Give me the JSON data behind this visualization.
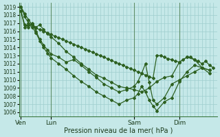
{
  "xlabel": "Pression niveau de la mer( hPa )",
  "background_color": "#c5e8e8",
  "grid_color": "#9ecece",
  "line_color": "#2d6020",
  "ylim": [
    1005.5,
    1019.5
  ],
  "yticks": [
    1006,
    1007,
    1008,
    1009,
    1010,
    1011,
    1012,
    1013,
    1014,
    1015,
    1016,
    1017,
    1018,
    1019
  ],
  "xtick_labels": [
    "Ven",
    "Lun",
    "Sam",
    "Dim"
  ],
  "xtick_positions": [
    0,
    8,
    30,
    42
  ],
  "xlim": [
    -0.5,
    52
  ],
  "vline_positions": [
    0,
    8,
    30,
    42
  ],
  "series1_x": [
    0,
    1,
    2,
    3,
    4,
    5,
    6,
    7,
    8,
    9,
    10,
    11,
    12,
    13,
    14,
    15,
    16,
    17,
    18,
    19,
    20,
    21,
    22,
    23,
    24,
    25,
    26,
    27,
    28,
    29,
    30,
    31,
    32,
    33,
    34,
    35,
    36,
    37,
    38,
    39,
    40,
    41,
    42,
    43,
    44,
    45,
    46,
    47,
    48,
    49,
    50,
    51
  ],
  "series1_y": [
    1019.0,
    1018.2,
    1017.4,
    1016.8,
    1016.4,
    1016.2,
    1016.0,
    1015.8,
    1015.6,
    1015.4,
    1015.2,
    1015.0,
    1014.8,
    1014.6,
    1014.4,
    1014.2,
    1014.0,
    1013.8,
    1013.6,
    1013.4,
    1013.2,
    1013.0,
    1012.8,
    1012.6,
    1012.4,
    1012.2,
    1012.0,
    1011.8,
    1011.6,
    1011.4,
    1011.2,
    1011.0,
    1010.8,
    1010.6,
    1010.4,
    1010.2,
    1013.0,
    1013.0,
    1012.8,
    1012.6,
    1012.5,
    1012.3,
    1012.2,
    1012.5,
    1012.8,
    1012.8,
    1012.5,
    1012.3,
    1012.0,
    1012.3,
    1011.8,
    1011.5
  ],
  "series2_x": [
    0,
    1,
    2,
    3,
    4,
    5,
    6,
    7,
    8,
    10,
    12,
    14,
    16,
    18,
    20,
    22,
    24,
    26,
    28,
    30,
    32,
    34,
    36,
    38,
    40,
    42,
    44,
    46,
    48,
    50
  ],
  "series2_y": [
    1019.0,
    1017.8,
    1017.0,
    1016.8,
    1016.5,
    1016.8,
    1016.2,
    1015.7,
    1015.3,
    1014.5,
    1013.5,
    1012.8,
    1012.0,
    1011.3,
    1010.6,
    1010.2,
    1009.7,
    1009.2,
    1009.0,
    1008.8,
    1008.5,
    1009.0,
    1009.8,
    1010.3,
    1010.5,
    1012.2,
    1012.8,
    1012.5,
    1011.5,
    1011.2
  ],
  "series3_x": [
    0,
    1,
    2,
    3,
    4,
    5,
    6,
    7,
    8,
    10,
    12,
    14,
    16,
    18,
    20,
    22,
    24,
    26,
    28,
    30,
    31,
    32,
    33,
    34,
    35,
    36,
    38,
    40,
    42,
    44,
    46,
    48,
    50
  ],
  "series3_y": [
    1018.5,
    1016.8,
    1016.5,
    1017.0,
    1016.0,
    1015.0,
    1014.3,
    1013.7,
    1013.2,
    1012.8,
    1012.2,
    1012.5,
    1011.8,
    1011.0,
    1010.3,
    1009.5,
    1009.0,
    1008.5,
    1008.8,
    1009.2,
    1009.8,
    1010.8,
    1012.0,
    1009.7,
    1007.5,
    1007.0,
    1007.8,
    1009.5,
    1010.0,
    1010.5,
    1011.0,
    1011.5,
    1010.8
  ],
  "series4_x": [
    0,
    1,
    2,
    3,
    4,
    5,
    6,
    7,
    8,
    10,
    12,
    14,
    16,
    18,
    20,
    22,
    24,
    26,
    28,
    30,
    31,
    32,
    33,
    34,
    35,
    36,
    38,
    40,
    42,
    44,
    46,
    48,
    50
  ],
  "series4_y": [
    1018.5,
    1016.5,
    1016.8,
    1016.5,
    1015.8,
    1014.8,
    1014.0,
    1013.3,
    1012.7,
    1012.0,
    1011.3,
    1010.5,
    1009.8,
    1009.2,
    1008.5,
    1008.0,
    1007.5,
    1007.0,
    1007.5,
    1007.8,
    1008.3,
    1009.2,
    1008.5,
    1007.5,
    1006.8,
    1006.2,
    1007.3,
    1007.8,
    1009.8,
    1011.0,
    1011.8,
    1011.5,
    1011.2
  ],
  "marker": "D",
  "marker_size": 2.0,
  "linewidth": 0.9
}
